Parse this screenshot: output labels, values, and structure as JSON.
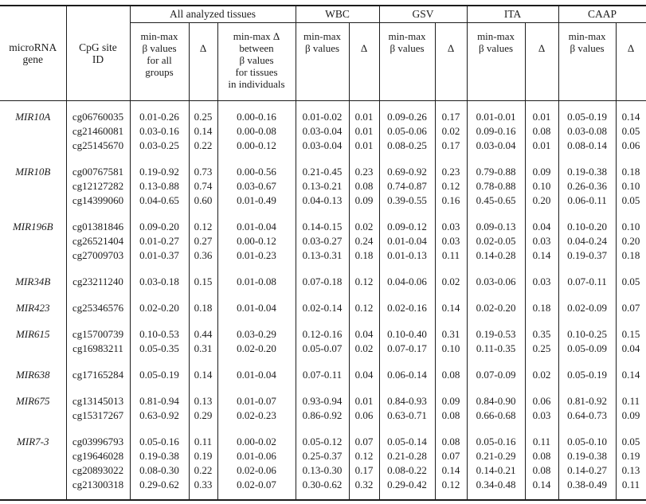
{
  "header": {
    "gene_label": "microRNA\ngene",
    "cpg_label": "CpG site\nID",
    "groups": [
      {
        "label": "All analyzed tissues",
        "sub": [
          "min-max\nβ values\nfor all\ngroups",
          "Δ",
          "min-max Δ\nbetween\nβ values\nfor tissues\nin individuals"
        ]
      },
      {
        "label": "WBC",
        "sub": [
          "min-max\nβ values",
          "Δ"
        ]
      },
      {
        "label": "GSV",
        "sub": [
          "min-max\nβ values",
          "Δ"
        ]
      },
      {
        "label": "ITA",
        "sub": [
          "min-max\nβ values",
          "Δ"
        ]
      },
      {
        "label": "CAAP",
        "sub": [
          "min-max\nβ values",
          "Δ"
        ]
      }
    ]
  },
  "body": {
    "groups": [
      {
        "gene": "MIR10A",
        "rows": [
          {
            "cpg": "cg06760035",
            "values": [
              "0.01-0.26",
              "0.25",
              "0.00-0.16",
              "0.01-0.02",
              "0.01",
              "0.09-0.26",
              "0.17",
              "0.01-0.01",
              "0.01",
              "0.05-0.19",
              "0.14"
            ]
          },
          {
            "cpg": "cg21460081",
            "values": [
              "0.03-0.16",
              "0.14",
              "0.00-0.08",
              "0.03-0.04",
              "0.01",
              "0.05-0.06",
              "0.02",
              "0.09-0.16",
              "0.08",
              "0.03-0.08",
              "0.05"
            ]
          },
          {
            "cpg": "cg25145670",
            "values": [
              "0.03-0.25",
              "0.22",
              "0.00-0.12",
              "0.03-0.04",
              "0.01",
              "0.08-0.25",
              "0.17",
              "0.03-0.04",
              "0.01",
              "0.08-0.14",
              "0.06"
            ]
          }
        ]
      },
      {
        "gene": "MIR10B",
        "rows": [
          {
            "cpg": "cg00767581",
            "values": [
              "0.19-0.92",
              "0.73",
              "0.00-0.56",
              "0.21-0.45",
              "0.23",
              "0.69-0.92",
              "0.23",
              "0.79-0.88",
              "0.09",
              "0.19-0.38",
              "0.18"
            ]
          },
          {
            "cpg": "cg12127282",
            "values": [
              "0.13-0.88",
              "0.74",
              "0.03-0.67",
              "0.13-0.21",
              "0.08",
              "0.74-0.87",
              "0.12",
              "0.78-0.88",
              "0.10",
              "0.26-0.36",
              "0.10"
            ]
          },
          {
            "cpg": "cg14399060",
            "values": [
              "0.04-0.65",
              "0.60",
              "0.01-0.49",
              "0.04-0.13",
              "0.09",
              "0.39-0.55",
              "0.16",
              "0.45-0.65",
              "0.20",
              "0.06-0.11",
              "0.05"
            ]
          }
        ]
      },
      {
        "gene": "MIR196B",
        "rows": [
          {
            "cpg": "cg01381846",
            "values": [
              "0.09-0.20",
              "0.12",
              "0.01-0.04",
              "0.14-0.15",
              "0.02",
              "0.09-0.12",
              "0.03",
              "0.09-0.13",
              "0.04",
              "0.10-0.20",
              "0.10"
            ]
          },
          {
            "cpg": "cg26521404",
            "values": [
              "0.01-0.27",
              "0.27",
              "0.00-0.12",
              "0.03-0.27",
              "0.24",
              "0.01-0.04",
              "0.03",
              "0.02-0.05",
              "0.03",
              "0.04-0.24",
              "0.20"
            ]
          },
          {
            "cpg": "cg27009703",
            "values": [
              "0.01-0.37",
              "0.36",
              "0.01-0.23",
              "0.13-0.31",
              "0.18",
              "0.01-0.13",
              "0.11",
              "0.14-0.28",
              "0.14",
              "0.19-0.37",
              "0.18"
            ]
          }
        ]
      },
      {
        "gene": "MIR34B",
        "rows": [
          {
            "cpg": "cg23211240",
            "values": [
              "0.03-0.18",
              "0.15",
              "0.01-0.08",
              "0.07-0.18",
              "0.12",
              "0.04-0.06",
              "0.02",
              "0.03-0.06",
              "0.03",
              "0.07-0.11",
              "0.05"
            ]
          }
        ]
      },
      {
        "gene": "MIR423",
        "rows": [
          {
            "cpg": "cg25346576",
            "values": [
              "0.02-0.20",
              "0.18",
              "0.01-0.04",
              "0.02-0.14",
              "0.12",
              "0.02-0.16",
              "0.14",
              "0.02-0.20",
              "0.18",
              "0.02-0.09",
              "0.07"
            ]
          }
        ]
      },
      {
        "gene": "MIR615",
        "rows": [
          {
            "cpg": "cg15700739",
            "values": [
              "0.10-0.53",
              "0.44",
              "0.03-0.29",
              "0.12-0.16",
              "0.04",
              "0.10-0.40",
              "0.31",
              "0.19-0.53",
              "0.35",
              "0.10-0.25",
              "0.15"
            ]
          },
          {
            "cpg": "cg16983211",
            "values": [
              "0.05-0.35",
              "0.31",
              "0.02-0.20",
              "0.05-0.07",
              "0.02",
              "0.07-0.17",
              "0.10",
              "0.11-0.35",
              "0.25",
              "0.05-0.09",
              "0.04"
            ]
          }
        ]
      },
      {
        "gene": "MIR638",
        "rows": [
          {
            "cpg": "cg17165284",
            "values": [
              "0.05-0.19",
              "0.14",
              "0.01-0.04",
              "0.07-0.11",
              "0.04",
              "0.06-0.14",
              "0.08",
              "0.07-0.09",
              "0.02",
              "0.05-0.19",
              "0.14"
            ]
          }
        ]
      },
      {
        "gene": "MIR675",
        "rows": [
          {
            "cpg": "cg13145013",
            "values": [
              "0.81-0.94",
              "0.13",
              "0.01-0.07",
              "0.93-0.94",
              "0.01",
              "0.84-0.93",
              "0.09",
              "0.84-0.90",
              "0.06",
              "0.81-0.92",
              "0.11"
            ]
          },
          {
            "cpg": "cg15317267",
            "values": [
              "0.63-0.92",
              "0.29",
              "0.02-0.23",
              "0.86-0.92",
              "0.06",
              "0.63-0.71",
              "0.08",
              "0.66-0.68",
              "0.03",
              "0.64-0.73",
              "0.09"
            ]
          }
        ]
      },
      {
        "gene": "MIR7-3",
        "rows": [
          {
            "cpg": "cg03996793",
            "values": [
              "0.05-0.16",
              "0.11",
              "0.00-0.02",
              "0.05-0.12",
              "0.07",
              "0.05-0.14",
              "0.08",
              "0.05-0.16",
              "0.11",
              "0.05-0.10",
              "0.05"
            ]
          },
          {
            "cpg": "cg19646028",
            "values": [
              "0.19-0.38",
              "0.19",
              "0.01-0.06",
              "0.25-0.37",
              "0.12",
              "0.21-0.28",
              "0.07",
              "0.21-0.29",
              "0.08",
              "0.19-0.38",
              "0.19"
            ]
          },
          {
            "cpg": "cg20893022",
            "values": [
              "0.08-0.30",
              "0.22",
              "0.02-0.06",
              "0.13-0.30",
              "0.17",
              "0.08-0.22",
              "0.14",
              "0.14-0.21",
              "0.08",
              "0.14-0.27",
              "0.13"
            ]
          },
          {
            "cpg": "cg21300318",
            "values": [
              "0.29-0.62",
              "0.33",
              "0.02-0.07",
              "0.30-0.62",
              "0.32",
              "0.29-0.42",
              "0.12",
              "0.34-0.48",
              "0.14",
              "0.38-0.49",
              "0.11"
            ]
          }
        ]
      }
    ]
  }
}
